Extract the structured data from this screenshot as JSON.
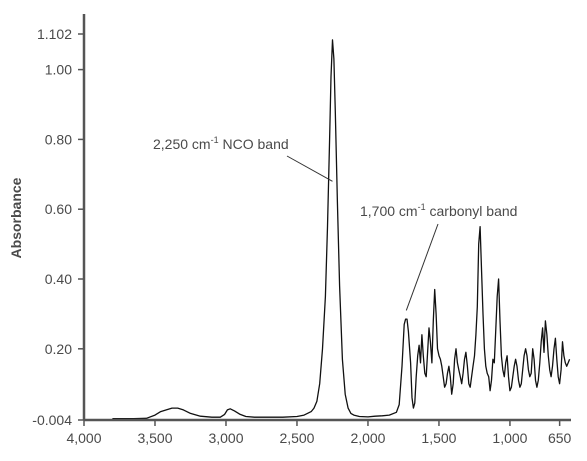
{
  "chart_data": {
    "type": "line",
    "title": "",
    "xlabel": "",
    "ylabel": "Absorbance",
    "xlim": [
      4000,
      570
    ],
    "ylim": [
      -0.004,
      1.102
    ],
    "x_reversed": true,
    "grid": false,
    "x_ticks": [
      {
        "value": 4000,
        "label": "4,000"
      },
      {
        "value": 3500,
        "label": "3,500"
      },
      {
        "value": 3000,
        "label": "3,000"
      },
      {
        "value": 2500,
        "label": "2,500"
      },
      {
        "value": 2000,
        "label": "2,000"
      },
      {
        "value": 1500,
        "label": "1,500"
      },
      {
        "value": 1000,
        "label": "1,000"
      },
      {
        "value": 650,
        "label": "650"
      }
    ],
    "y_ticks": [
      {
        "value": -0.004,
        "label": "-0.004"
      },
      {
        "value": 0.2,
        "label": "0.20"
      },
      {
        "value": 0.4,
        "label": "0.40"
      },
      {
        "value": 0.6,
        "label": "0.60"
      },
      {
        "value": 0.8,
        "label": "0.80"
      },
      {
        "value": 1.0,
        "label": "1.00"
      },
      {
        "value": 1.102,
        "label": "1.102"
      }
    ],
    "annotations": [
      {
        "text": "2,250 cm",
        "sup": "-1",
        "tail": " NCO band",
        "x": 2250,
        "y": 0.68
      },
      {
        "text": "1,700 cm",
        "sup": "-1",
        "tail": " carbonyl band",
        "x": 1730,
        "y": 0.31
      }
    ],
    "series": [
      {
        "x": [
          3800,
          3650,
          3560,
          3500,
          3460,
          3420,
          3380,
          3340,
          3300,
          3250,
          3180,
          3100,
          3040,
          3010,
          2990,
          2970,
          2940,
          2900,
          2860,
          2800,
          2700,
          2600,
          2500,
          2450,
          2400,
          2380,
          2360,
          2340,
          2320,
          2300,
          2285,
          2270,
          2260,
          2250,
          2240,
          2230,
          2215,
          2200,
          2180,
          2160,
          2140,
          2120,
          2100,
          2060,
          2000,
          1950,
          1900,
          1850,
          1800,
          1780,
          1760,
          1745,
          1735,
          1725,
          1715,
          1700,
          1690,
          1680,
          1670,
          1660,
          1650,
          1640,
          1630,
          1620,
          1610,
          1600,
          1590,
          1580,
          1570,
          1560,
          1550,
          1540,
          1530,
          1520,
          1510,
          1500,
          1490,
          1480,
          1470,
          1460,
          1450,
          1440,
          1430,
          1420,
          1410,
          1400,
          1390,
          1380,
          1370,
          1360,
          1350,
          1340,
          1330,
          1320,
          1310,
          1300,
          1290,
          1280,
          1270,
          1260,
          1250,
          1240,
          1230,
          1220,
          1210,
          1200,
          1190,
          1180,
          1170,
          1160,
          1150,
          1140,
          1130,
          1120,
          1110,
          1100,
          1090,
          1080,
          1070,
          1060,
          1050,
          1040,
          1030,
          1020,
          1010,
          1000,
          990,
          980,
          970,
          960,
          950,
          940,
          930,
          920,
          910,
          900,
          890,
          880,
          870,
          860,
          850,
          840,
          830,
          820,
          810,
          800,
          790,
          780,
          770,
          760,
          750,
          740,
          730,
          720,
          710,
          700,
          690,
          680,
          670,
          660,
          650,
          640,
          630,
          620,
          610,
          600,
          590,
          580
        ],
        "y": [
          0.0,
          0.0,
          0.001,
          0.01,
          0.02,
          0.025,
          0.03,
          0.03,
          0.025,
          0.015,
          0.007,
          0.004,
          0.004,
          0.012,
          0.025,
          0.028,
          0.022,
          0.012,
          0.006,
          0.004,
          0.004,
          0.004,
          0.006,
          0.01,
          0.02,
          0.03,
          0.05,
          0.1,
          0.2,
          0.35,
          0.55,
          0.8,
          0.98,
          1.085,
          1.03,
          0.88,
          0.62,
          0.38,
          0.17,
          0.07,
          0.03,
          0.015,
          0.01,
          0.006,
          0.005,
          0.007,
          0.008,
          0.01,
          0.018,
          0.04,
          0.15,
          0.27,
          0.285,
          0.285,
          0.25,
          0.16,
          0.06,
          0.03,
          0.045,
          0.12,
          0.18,
          0.21,
          0.16,
          0.24,
          0.18,
          0.13,
          0.12,
          0.19,
          0.26,
          0.22,
          0.16,
          0.28,
          0.37,
          0.3,
          0.2,
          0.18,
          0.17,
          0.15,
          0.12,
          0.09,
          0.1,
          0.13,
          0.15,
          0.12,
          0.07,
          0.1,
          0.17,
          0.2,
          0.16,
          0.14,
          0.12,
          0.1,
          0.13,
          0.17,
          0.19,
          0.15,
          0.1,
          0.09,
          0.12,
          0.15,
          0.18,
          0.24,
          0.32,
          0.5,
          0.55,
          0.42,
          0.3,
          0.2,
          0.15,
          0.13,
          0.12,
          0.08,
          0.11,
          0.17,
          0.16,
          0.25,
          0.35,
          0.4,
          0.28,
          0.18,
          0.14,
          0.12,
          0.16,
          0.18,
          0.12,
          0.08,
          0.09,
          0.12,
          0.15,
          0.17,
          0.15,
          0.11,
          0.09,
          0.1,
          0.14,
          0.18,
          0.2,
          0.18,
          0.14,
          0.12,
          0.13,
          0.2,
          0.17,
          0.11,
          0.09,
          0.11,
          0.16,
          0.22,
          0.26,
          0.19,
          0.28,
          0.24,
          0.18,
          0.14,
          0.12,
          0.15,
          0.2,
          0.23,
          0.17,
          0.12,
          0.1,
          0.14,
          0.22,
          0.18,
          0.16,
          0.15,
          0.16,
          0.17
        ]
      }
    ]
  }
}
